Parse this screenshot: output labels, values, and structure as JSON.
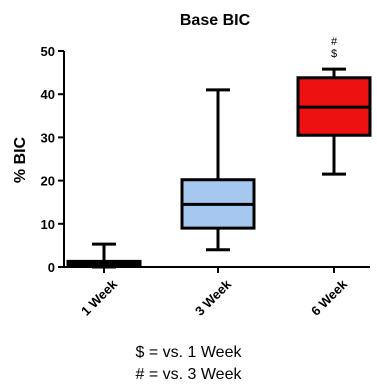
{
  "chart_data": {
    "type": "boxplot",
    "title": "Base BIC",
    "xlabel": "",
    "ylabel": "% BIC",
    "ylim": [
      0,
      50
    ],
    "yticks": [
      0,
      10,
      20,
      30,
      40,
      50
    ],
    "grid": false,
    "categories": [
      "1 Week",
      "3 Week",
      "6 Week"
    ],
    "boxes": [
      {
        "category": "1 Week",
        "min": 0,
        "q1": 0.5,
        "median": 1.0,
        "q3": 1.3,
        "max": 5.3,
        "color": "#ffffff"
      },
      {
        "category": "3 Week",
        "min": 4,
        "q1": 9,
        "median": 14.5,
        "q3": 20.2,
        "max": 41,
        "color": "#a6c8f0"
      },
      {
        "category": "6 Week",
        "min": 21.5,
        "q1": 30.5,
        "median": 37,
        "q3": 43.8,
        "max": 45.8,
        "color": "#ee1111"
      }
    ],
    "annotations": [
      {
        "category": "6 Week",
        "symbols": [
          "#",
          "$"
        ]
      }
    ]
  },
  "footnotes": [
    "$ = vs. 1 Week",
    "# = vs. 3 Week"
  ]
}
